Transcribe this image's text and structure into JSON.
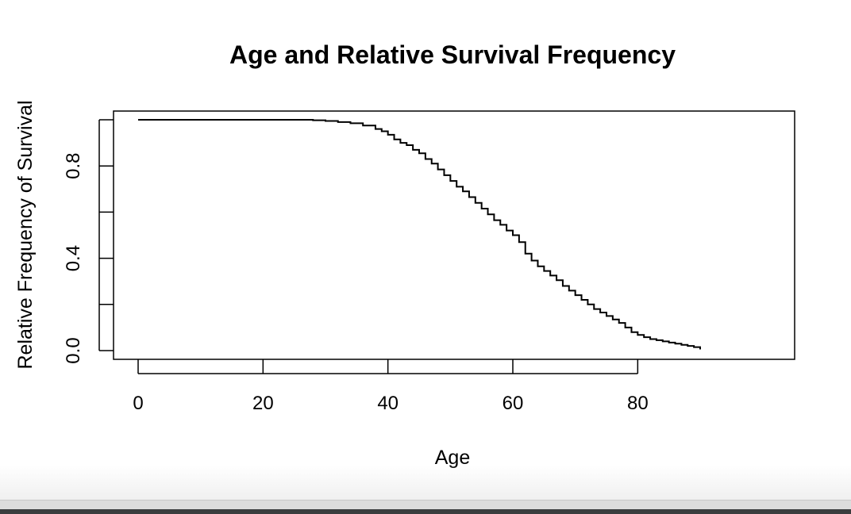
{
  "chart_data": {
    "type": "line",
    "step": true,
    "title": "Age and Relative Survival Frequency",
    "xlabel": "Age",
    "ylabel": "Relative Frequency of Survival",
    "xlim": [
      0,
      90
    ],
    "ylim": [
      0,
      1
    ],
    "x_ticks": [
      0,
      20,
      40,
      60,
      80
    ],
    "x_tick_labels": [
      "0",
      "20",
      "40",
      "60",
      "80"
    ],
    "y_ticks": [
      0.0,
      0.2,
      0.4,
      0.6,
      0.8,
      1.0
    ],
    "y_tick_labels": [
      "0.0",
      "",
      "0.4",
      "",
      "0.8",
      ""
    ],
    "grid": false,
    "series": [
      {
        "x": [
          0,
          5,
          10,
          15,
          20,
          25,
          28,
          30,
          32,
          34,
          36,
          38,
          39,
          40,
          41,
          42,
          43,
          44,
          45,
          46,
          47,
          48,
          49,
          50,
          51,
          52,
          53,
          54,
          55,
          56,
          57,
          58,
          59,
          60,
          61,
          62,
          63,
          64,
          65,
          66,
          67,
          68,
          69,
          70,
          71,
          72,
          73,
          74,
          75,
          76,
          77,
          78,
          79,
          80,
          81,
          82,
          83,
          84,
          85,
          86,
          87,
          88,
          89,
          90
        ],
        "y": [
          1.0,
          1.0,
          1.0,
          1.0,
          1.0,
          1.0,
          0.998,
          0.995,
          0.99,
          0.985,
          0.975,
          0.96,
          0.95,
          0.935,
          0.915,
          0.9,
          0.89,
          0.87,
          0.855,
          0.83,
          0.81,
          0.785,
          0.76,
          0.735,
          0.71,
          0.69,
          0.665,
          0.64,
          0.615,
          0.59,
          0.565,
          0.545,
          0.52,
          0.5,
          0.47,
          0.42,
          0.39,
          0.365,
          0.345,
          0.325,
          0.305,
          0.28,
          0.26,
          0.24,
          0.22,
          0.2,
          0.18,
          0.165,
          0.15,
          0.135,
          0.12,
          0.1,
          0.08,
          0.068,
          0.058,
          0.05,
          0.045,
          0.04,
          0.035,
          0.03,
          0.025,
          0.02,
          0.015,
          0.005
        ],
        "color": "#000000"
      }
    ]
  }
}
